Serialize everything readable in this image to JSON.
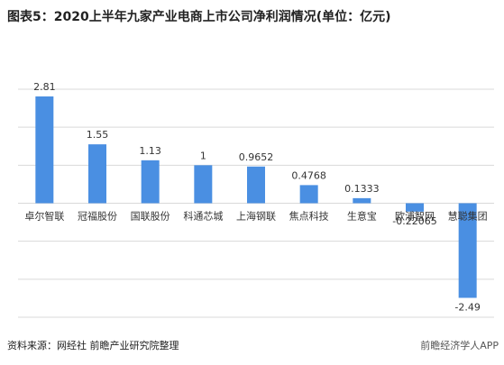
{
  "chart_data": {
    "type": "bar",
    "title": "图表5：2020上半年九家产业电商上市公司净利润情况(单位：亿元)",
    "categories": [
      "卓尔智联",
      "冠福股份",
      "国联股份",
      "科通芯城",
      "上海钢联",
      "焦点科技",
      "生意宝",
      "欧浦智网",
      "慧聪集团"
    ],
    "values": [
      2.81,
      1.55,
      1.13,
      1,
      0.9652,
      0.4768,
      0.1333,
      -0.22065,
      -2.49
    ],
    "color": "#4a8fe2",
    "ylim": [
      -3,
      3
    ],
    "yticks": [
      -3,
      -2,
      -1,
      0,
      1,
      2,
      3
    ],
    "grid": true,
    "source": "资料来源：网经社 前瞻产业研究院整理",
    "watermark": "前瞻经济学人APP"
  }
}
